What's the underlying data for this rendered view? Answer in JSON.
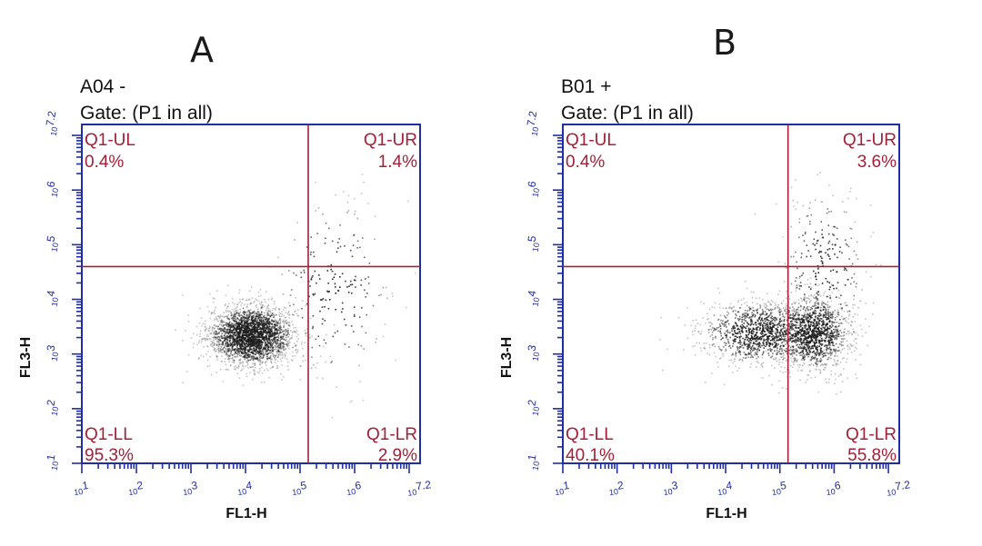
{
  "chart_data": [
    {
      "type": "scatter",
      "panel_label": "A",
      "title": "A04 -",
      "subtitle": "Gate: (P1 in all)",
      "xlabel": "FL1-H",
      "ylabel": "FL3-H",
      "x_scale": "log",
      "y_scale": "log",
      "xlim": [
        "10^1",
        "10^7.2"
      ],
      "ylim": [
        "10^1",
        "10^7.2"
      ],
      "x_tick_labels": [
        "10^1",
        "10^2",
        "10^3",
        "10^4",
        "10^5",
        "10^6",
        "10^7.2"
      ],
      "y_tick_labels": [
        "10^1",
        "10^2",
        "10^3",
        "10^4",
        "10^5",
        "10^6",
        "10^7.2"
      ],
      "gate_x": 5.15,
      "gate_y": 4.6,
      "quadrants": [
        {
          "name": "Q1-UL",
          "percent": "0.4%",
          "position": "top-left"
        },
        {
          "name": "Q1-UR",
          "percent": "1.4%",
          "position": "top-right"
        },
        {
          "name": "Q1-LL",
          "percent": "95.3%",
          "position": "bottom-left"
        },
        {
          "name": "Q1-LR",
          "percent": "2.9%",
          "position": "bottom-right"
        }
      ],
      "populations": [
        {
          "name": "",
          "center_log": [
            4.1,
            3.35
          ],
          "spread_log": [
            0.4,
            0.28
          ],
          "weight": 0.92
        },
        {
          "name": "",
          "center_log": [
            5.6,
            4.2
          ],
          "spread_log": [
            0.55,
            0.9
          ],
          "weight": 0.08
        }
      ],
      "colors": {
        "frame": "#1f2da6",
        "gate": "#a32038",
        "events": "#1e1e1e"
      }
    },
    {
      "type": "scatter",
      "panel_label": "B",
      "title": "B01 +",
      "subtitle": "Gate: (P1 in all)",
      "xlabel": "FL1-H",
      "ylabel": "FL3-H",
      "x_scale": "log",
      "y_scale": "log",
      "xlim": [
        "10^1",
        "10^7.2"
      ],
      "ylim": [
        "10^1",
        "10^7.2"
      ],
      "x_tick_labels": [
        "10^1",
        "10^2",
        "10^3",
        "10^4",
        "10^5",
        "10^6",
        "10^7.2"
      ],
      "y_tick_labels": [
        "10^1",
        "10^2",
        "10^3",
        "10^4",
        "10^5",
        "10^6",
        "10^7.2"
      ],
      "gate_x": 5.15,
      "gate_y": 4.6,
      "quadrants": [
        {
          "name": "Q1-UL",
          "percent": "0.4%",
          "position": "top-left"
        },
        {
          "name": "Q1-UR",
          "percent": "3.6%",
          "position": "top-right"
        },
        {
          "name": "Q1-LL",
          "percent": "40.1%",
          "position": "bottom-left"
        },
        {
          "name": "Q1-LR",
          "percent": "55.8%",
          "position": "bottom-right"
        }
      ],
      "populations": [
        {
          "name": "",
          "center_log": [
            4.6,
            3.4
          ],
          "spread_log": [
            0.55,
            0.3
          ],
          "weight": 0.42
        },
        {
          "name": "",
          "center_log": [
            5.6,
            3.4
          ],
          "spread_log": [
            0.35,
            0.35
          ],
          "weight": 0.48
        },
        {
          "name": "",
          "center_log": [
            5.8,
            4.5
          ],
          "spread_log": [
            0.4,
            0.8
          ],
          "weight": 0.1
        }
      ],
      "colors": {
        "frame": "#1f2da6",
        "gate": "#a32038",
        "events": "#1e1e1e"
      }
    }
  ]
}
